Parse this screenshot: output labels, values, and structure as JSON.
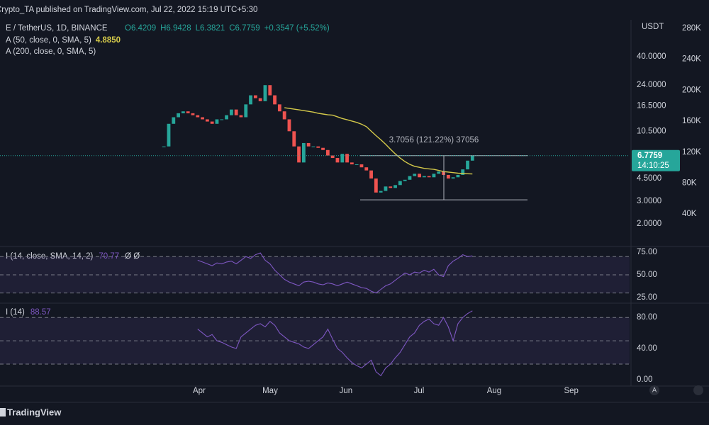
{
  "header": {
    "publisher": "Crypto_TA published on TradingView.com, Jul 22, 2022 15:19 UTC+5:30",
    "footer": "TradingView",
    "auto_button": "A"
  },
  "chart_data": [
    {
      "type": "candlestick",
      "title": "E / TetherUS, 1D, BINANCE",
      "ohlc": [
        "O6.4209",
        "H6.9428",
        "L6.3821",
        "C6.7759",
        "+0.3547 (+5.52%)"
      ],
      "currency": "USDT",
      "log_scale": true,
      "xlim": [
        -34,
        96.6
      ],
      "xticks": [
        {
          "value": 7.32,
          "label": "Apr"
        },
        {
          "value": 22.03,
          "label": "May"
        },
        {
          "value": 37.76,
          "label": "Jun"
        },
        {
          "value": 52.91,
          "label": "Jul"
        },
        {
          "value": 68.5,
          "label": "Aug"
        },
        {
          "value": 84.5,
          "label": "Sep"
        }
      ],
      "ylim": [
        1.33,
        77.4
      ],
      "yticks": [
        {
          "value": 2,
          "label": "2.0000"
        },
        {
          "value": 3,
          "label": "3.0000"
        },
        {
          "value": 4.5,
          "label": "4.5000"
        },
        {
          "value": 10.5,
          "label": "10.5000"
        },
        {
          "value": 16.5,
          "label": "16.5000"
        },
        {
          "value": 24,
          "label": "24.0000"
        },
        {
          "value": 40,
          "label": "40.0000"
        }
      ],
      "y2lim": [
        -2000,
        291000
      ],
      "y2ticks": [
        {
          "value": 40000,
          "label": "40K"
        },
        {
          "value": 80000,
          "label": "80K"
        },
        {
          "value": 120000,
          "label": "120K"
        },
        {
          "value": 160000,
          "label": "160K"
        },
        {
          "value": 200000,
          "label": "200K"
        },
        {
          "value": 240000,
          "label": "240K"
        },
        {
          "value": 280000,
          "label": "280K"
        }
      ],
      "last_price": 6.7759,
      "countdown": "14:10:25",
      "candles": {
        "up_color": "#26a69a",
        "down_color": "#ef5350",
        "values": [
          8.0,
          12.0,
          13.5,
          14.5,
          15.0,
          14.5,
          14.0,
          13.5,
          13.0,
          12.5,
          12.0,
          13.0,
          13.0,
          14.0,
          15.5,
          14.0,
          13.5,
          17.0,
          20.0,
          19.0,
          18.0,
          24.0,
          20.0,
          17.0,
          15.0,
          13.0,
          10.5,
          8.0,
          6.0,
          8.5,
          8.0,
          8.0,
          7.8,
          7.5,
          6.8,
          6.5,
          6.0,
          7.0,
          6.0,
          5.8,
          5.8,
          5.5,
          5.2,
          4.5,
          3.5,
          3.6,
          3.9,
          3.8,
          4.0,
          4.3,
          4.4,
          4.7,
          4.9,
          4.6,
          4.7,
          4.6,
          4.9,
          5.1,
          4.8,
          4.5,
          4.6,
          4.8,
          5.3,
          6.2,
          6.7759
        ]
      },
      "series": [
        {
          "name": "A (50, close, 0, SMA, 5)",
          "color": "#d4c94a",
          "legend_value": "4.8850",
          "values": [
            null,
            null,
            null,
            null,
            null,
            null,
            null,
            null,
            null,
            null,
            null,
            null,
            null,
            null,
            null,
            null,
            null,
            null,
            null,
            null,
            null,
            null,
            null,
            null,
            null,
            16.0,
            15.8,
            15.6,
            15.4,
            15.2,
            15.0,
            14.8,
            14.5,
            14.3,
            14.1,
            14.0,
            13.6,
            13.2,
            12.9,
            12.6,
            12.3,
            11.9,
            11.4,
            10.5,
            9.7,
            9.0,
            8.3,
            7.6,
            7.0,
            6.5,
            6.1,
            5.8,
            5.6,
            5.5,
            5.4,
            5.35,
            5.3,
            5.2,
            5.1,
            5.05,
            5.0,
            4.95,
            4.92,
            4.9,
            4.885
          ]
        },
        {
          "name": "A (200, close, 0, SMA, 5)",
          "color": "#d1d4dc"
        }
      ],
      "measure": {
        "label": "3.7056 (121.22%) 37056",
        "low": 3.07,
        "high": 6.7759
      }
    },
    {
      "type": "line",
      "title": "I (14, close, SMA, 14, 2)",
      "legend_value": "70.77",
      "legend_extra": "Ø Ø",
      "ylim": [
        21.2,
        79.5
      ],
      "yticks": [
        {
          "value": 25,
          "label": "25.00"
        },
        {
          "value": 50,
          "label": "50.00"
        },
        {
          "value": 75,
          "label": "75.00"
        }
      ],
      "levels": [
        70,
        50,
        30
      ],
      "series": [
        {
          "color": "#7e57c2",
          "values": [
            null,
            null,
            null,
            null,
            null,
            null,
            null,
            66,
            64,
            62,
            60,
            63,
            62,
            64,
            65,
            62,
            66,
            70,
            68,
            72,
            74,
            66,
            62,
            55,
            50,
            45,
            42,
            40,
            38,
            42,
            43,
            42,
            40,
            39,
            41,
            40,
            38,
            40,
            42,
            40,
            38,
            36,
            35,
            32,
            30,
            34,
            38,
            40,
            44,
            48,
            52,
            50,
            53,
            52,
            55,
            53,
            56,
            50,
            48,
            60,
            65,
            68,
            72,
            70,
            70.77
          ]
        }
      ]
    },
    {
      "type": "line",
      "title": "I (14)",
      "legend_value": "88.57",
      "ylim": [
        -8.3,
        96.6
      ],
      "yticks": [
        {
          "value": 0,
          "label": "0.00"
        },
        {
          "value": 40,
          "label": "40.00"
        },
        {
          "value": 80,
          "label": "80.00"
        }
      ],
      "levels": [
        80,
        50,
        20
      ],
      "series": [
        {
          "color": "#7e57c2",
          "values": [
            null,
            null,
            null,
            null,
            null,
            null,
            null,
            65,
            60,
            55,
            58,
            50,
            48,
            45,
            42,
            40,
            55,
            60,
            65,
            70,
            72,
            68,
            75,
            70,
            60,
            55,
            50,
            48,
            46,
            42,
            40,
            45,
            50,
            55,
            65,
            52,
            40,
            35,
            28,
            22,
            18,
            15,
            20,
            25,
            10,
            5,
            15,
            20,
            28,
            35,
            45,
            55,
            60,
            70,
            75,
            78,
            72,
            70,
            80,
            68,
            50,
            72,
            80,
            85,
            88.57
          ]
        }
      ]
    }
  ]
}
